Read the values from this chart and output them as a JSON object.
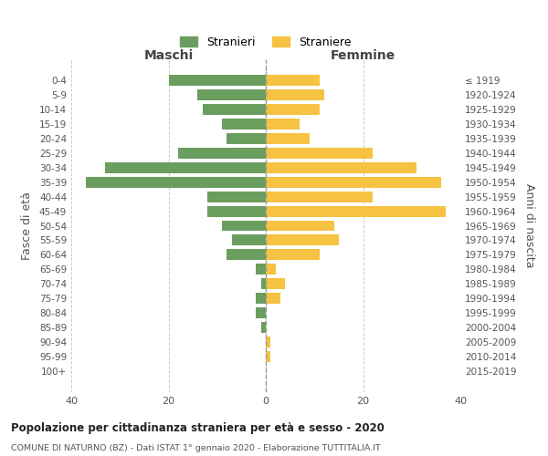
{
  "age_groups": [
    "0-4",
    "5-9",
    "10-14",
    "15-19",
    "20-24",
    "25-29",
    "30-34",
    "35-39",
    "40-44",
    "45-49",
    "50-54",
    "55-59",
    "60-64",
    "65-69",
    "70-74",
    "75-79",
    "80-84",
    "85-89",
    "90-94",
    "95-99",
    "100+"
  ],
  "birth_years": [
    "2015-2019",
    "2010-2014",
    "2005-2009",
    "2000-2004",
    "1995-1999",
    "1990-1994",
    "1985-1989",
    "1980-1984",
    "1975-1979",
    "1970-1974",
    "1965-1969",
    "1960-1964",
    "1955-1959",
    "1950-1954",
    "1945-1949",
    "1940-1944",
    "1935-1939",
    "1930-1934",
    "1925-1929",
    "1920-1924",
    "≤ 1919"
  ],
  "males": [
    20,
    14,
    13,
    9,
    8,
    18,
    33,
    37,
    12,
    12,
    9,
    7,
    8,
    2,
    1,
    2,
    2,
    1,
    0,
    0,
    0
  ],
  "females": [
    11,
    12,
    11,
    7,
    9,
    22,
    31,
    36,
    22,
    37,
    14,
    15,
    11,
    2,
    4,
    3,
    0,
    0,
    1,
    1,
    0
  ],
  "male_color": "#6a9e5e",
  "female_color": "#f5c242",
  "title": "Popolazione per cittadinanza straniera per età e sesso - 2020",
  "subtitle": "COMUNE DI NATURNO (BZ) - Dati ISTAT 1° gennaio 2020 - Elaborazione TUTTITALIA.IT",
  "ylabel_left": "Fasce di età",
  "ylabel_right": "Anni di nascita",
  "xlabel_left": "Maschi",
  "xlabel_right": "Femmine",
  "legend_male": "Stranieri",
  "legend_female": "Straniere",
  "xlim": 40,
  "background_color": "#ffffff",
  "grid_color": "#cccccc"
}
